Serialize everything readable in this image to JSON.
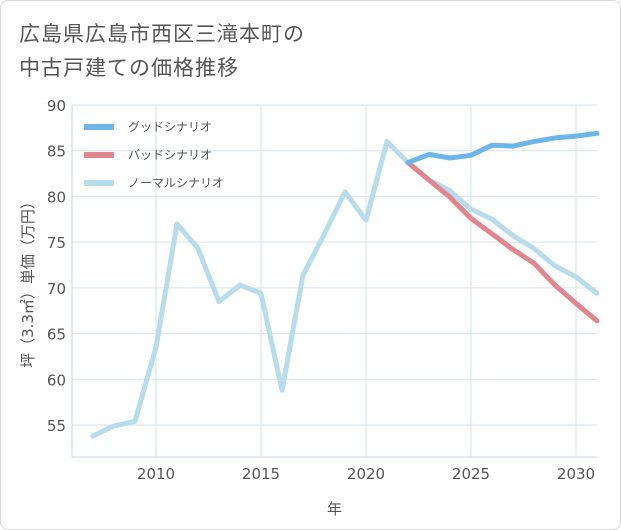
{
  "title_line1": "広島県広島市西区三滝本町の",
  "title_line2": "中古戸建ての価格推移",
  "chart_data": {
    "type": "line",
    "title": "広島県広島市西区三滝本町の中古戸建ての価格推移",
    "xlabel": "年",
    "ylabel": "坪（3.3㎡）単価（万円）",
    "xlim": [
      2006,
      2031
    ],
    "ylim": [
      51.5,
      90
    ],
    "x_ticks": [
      2010,
      2015,
      2020,
      2025,
      2030
    ],
    "y_ticks": [
      55,
      60,
      65,
      70,
      75,
      80,
      85,
      90
    ],
    "grid": true,
    "legend_position": "top-left",
    "series": [
      {
        "name": "グッドシナリオ",
        "color": "#6cb6ea",
        "x": [
          2022,
          2023,
          2024,
          2025,
          2026,
          2027,
          2028,
          2029,
          2030,
          2031
        ],
        "values": [
          83.7,
          84.6,
          84.2,
          84.5,
          85.6,
          85.5,
          86.0,
          86.4,
          86.6,
          86.9
        ]
      },
      {
        "name": "バッドシナリオ",
        "color": "#e0868f",
        "x": [
          2022,
          2023,
          2024,
          2025,
          2026,
          2027,
          2028,
          2029,
          2030,
          2031
        ],
        "values": [
          83.7,
          81.8,
          79.9,
          77.6,
          75.9,
          74.2,
          72.7,
          70.3,
          68.3,
          66.4
        ]
      },
      {
        "name": "ノーマルシナリオ",
        "color": "#b7dceb",
        "x": [
          2007,
          2008,
          2009,
          2010,
          2011,
          2012,
          2013,
          2014,
          2015,
          2016,
          2017,
          2018,
          2019,
          2020,
          2021,
          2022,
          2023,
          2024,
          2025,
          2026,
          2027,
          2028,
          2029,
          2030,
          2031
        ],
        "values": [
          53.8,
          54.9,
          55.4,
          63.5,
          77.0,
          74.3,
          68.5,
          70.3,
          69.4,
          58.8,
          71.4,
          75.8,
          80.5,
          77.4,
          86.0,
          83.7,
          81.8,
          80.6,
          78.6,
          77.5,
          75.7,
          74.3,
          72.4,
          71.2,
          69.4
        ]
      }
    ]
  }
}
